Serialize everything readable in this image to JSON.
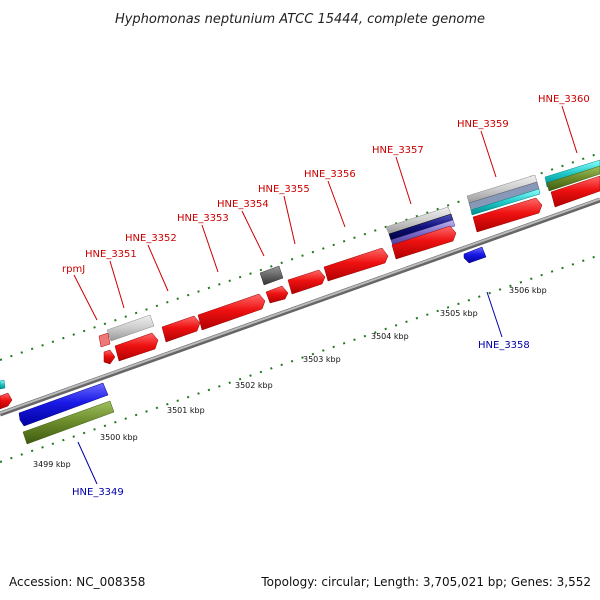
{
  "title": "Hyphomonas neptunium ATCC 15444, complete genome",
  "footer": {
    "accession": "Accession: NC_008358",
    "summary": "Topology: circular; Length: 3,705,021 bp; Genes: 3,552"
  },
  "colors": {
    "cds_forward": "#ee1111",
    "cds_reverse": "#1a1ae6",
    "trna": "#cccccc",
    "gray_gene": "#666666",
    "navy": "#10107a",
    "purple": "#7a6ac8",
    "olive": "#6a8a2a",
    "cyan": "#20c8c8",
    "tick": "#207a20",
    "axis": "#999999",
    "label_forward": "#cc0000",
    "label_reverse": "#0000aa"
  },
  "scale": {
    "ticks_kbp": [
      "3499 kbp",
      "3500 kbp",
      "3501 kbp",
      "3502 kbp",
      "3503 kbp",
      "3504 kbp",
      "3505 kbp",
      "3506 kbp"
    ]
  },
  "genes": {
    "forward_labels": [
      "rpmJ",
      "HNE_3351",
      "HNE_3352",
      "HNE_3353",
      "HNE_3354",
      "HNE_3355",
      "HNE_3356",
      "HNE_3357",
      "HNE_3359",
      "HNE_3360"
    ],
    "reverse_labels": [
      "HNE_3349",
      "HNE_3358"
    ]
  }
}
